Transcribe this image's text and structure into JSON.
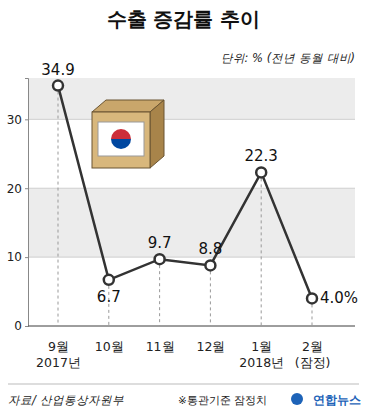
{
  "chart_data": {
    "type": "line",
    "title": "수출 증감률 추이",
    "subtitle": "단위: % (전년 동월 대비)",
    "categories": [
      "9월\n2017년",
      "10월",
      "11월",
      "12월",
      "1월\n2018년",
      "2월\n(잠정)"
    ],
    "values": [
      34.9,
      6.7,
      9.7,
      8.8,
      22.3,
      4.0
    ],
    "value_labels": [
      "34.9",
      "6.7",
      "9.7",
      "8.8",
      "22.3",
      "4.0%"
    ],
    "color": "#333333",
    "marker": "circle",
    "data_labels": true,
    "ylim": [
      0,
      36
    ],
    "yticks": [
      0,
      10,
      20,
      30
    ],
    "grid": true,
    "source": "자료/ 산업통상자원부",
    "note": "※통관기준 잠정치",
    "credit": "연합뉴스"
  }
}
